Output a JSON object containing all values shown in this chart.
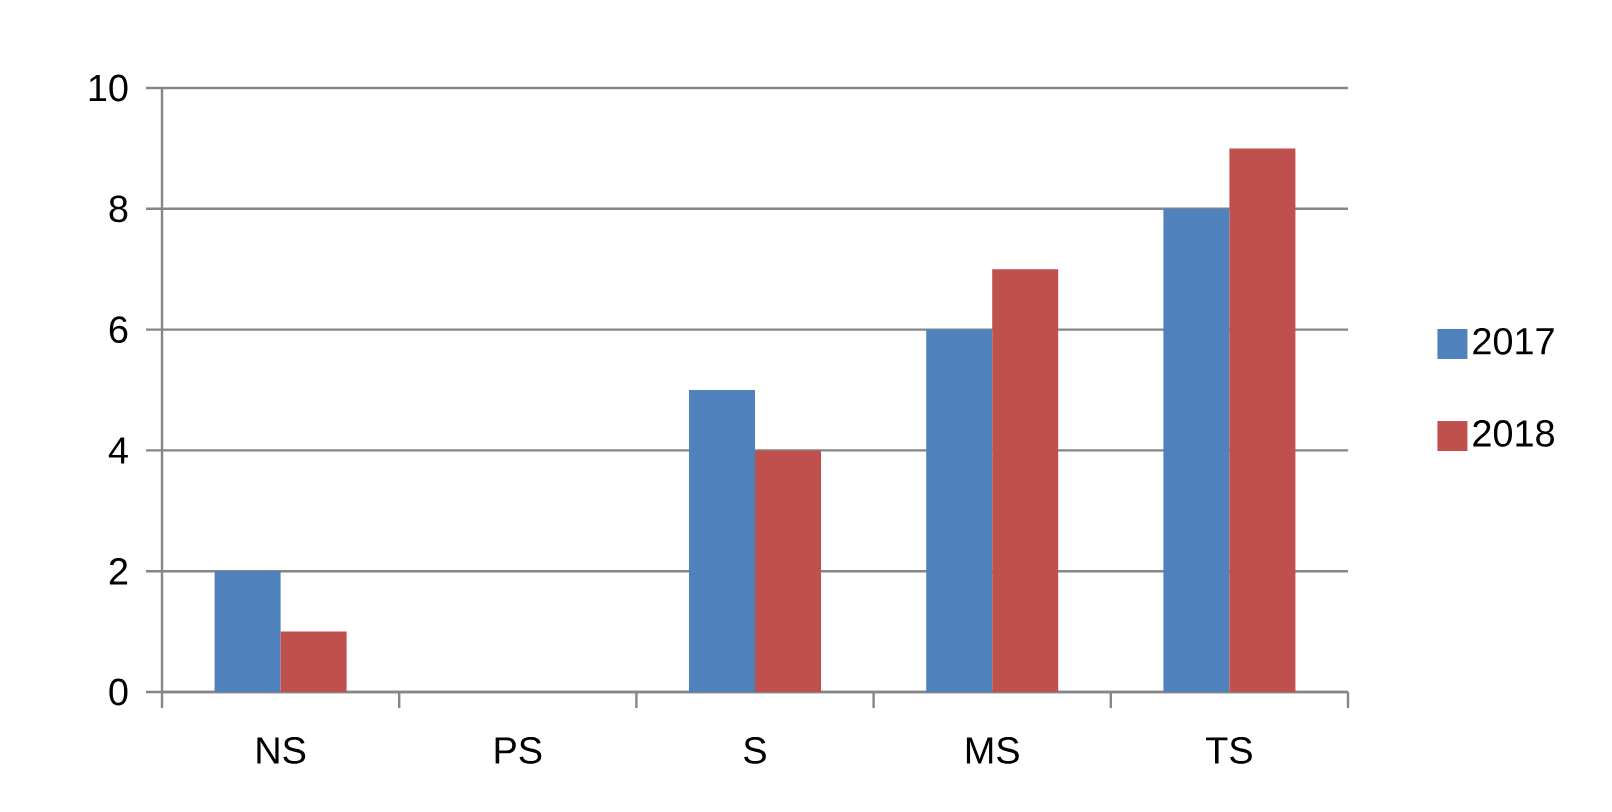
{
  "chart_data": {
    "type": "bar",
    "categories": [
      "NS",
      "PS",
      "S",
      "MS",
      "TS"
    ],
    "series": [
      {
        "name": "2017",
        "color": "#4f81bd",
        "values": [
          2,
          0,
          5,
          6,
          8
        ]
      },
      {
        "name": "2018",
        "color": "#c0504d",
        "values": [
          1,
          0,
          4,
          7,
          9
        ]
      }
    ],
    "ylim": [
      0,
      10
    ],
    "yticks": [
      0,
      2,
      4,
      6,
      8,
      10
    ],
    "grid": "y",
    "legend": "right"
  }
}
